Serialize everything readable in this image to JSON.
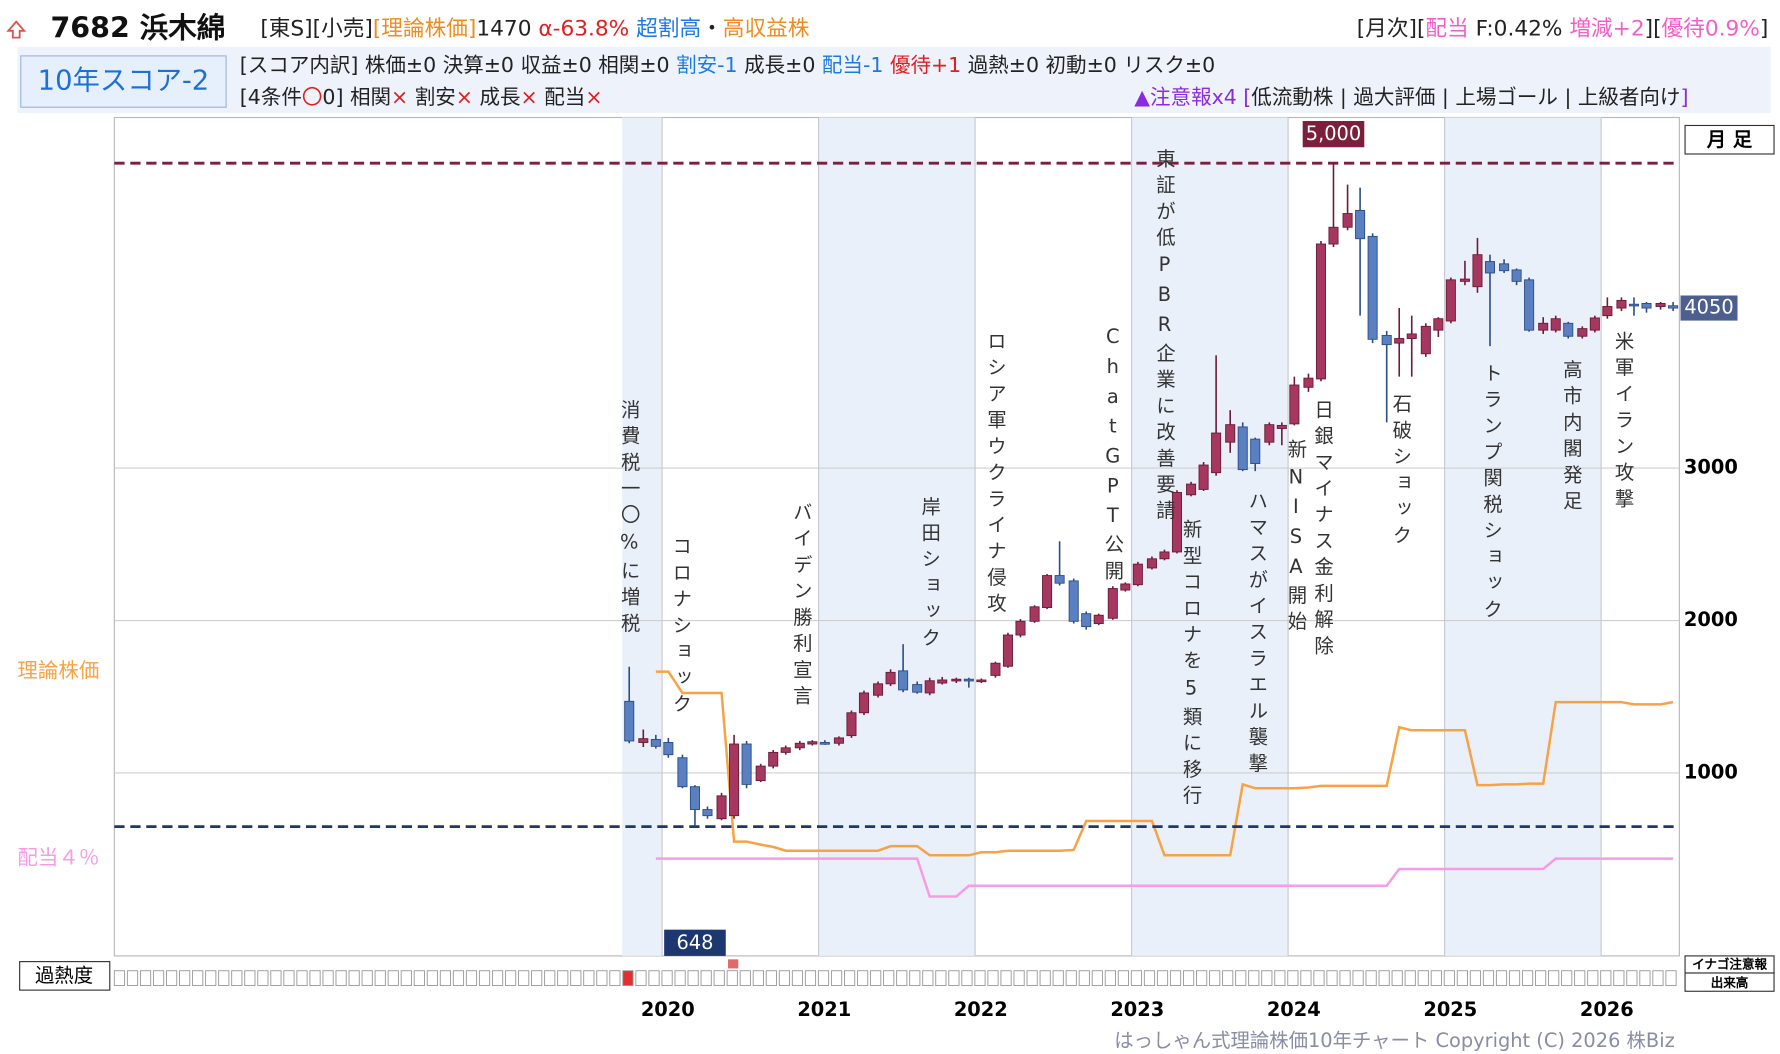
{
  "header": {
    "ticker": "7682 浜木綿",
    "line1_left": [
      {
        "text": "[東S][小売]",
        "color": "#222"
      },
      {
        "text": "[理論株価]",
        "color": "#f08c1e"
      },
      {
        "text": "1470 ",
        "color": "#222"
      },
      {
        "text": "α-63.8%",
        "color": "#e02020"
      },
      {
        "text": " 超割高",
        "color": "#1f7ae0"
      },
      {
        "text": "・",
        "color": "#222"
      },
      {
        "text": "高収益株",
        "color": "#f08c1e"
      }
    ],
    "line1_right": [
      {
        "text": "[月次][",
        "color": "#222"
      },
      {
        "text": "配当",
        "color": "#f060c8"
      },
      {
        "text": " F:0.42% ",
        "color": "#222"
      },
      {
        "text": "増減+2",
        "color": "#f060c8"
      },
      {
        "text": "][",
        "color": "#222"
      },
      {
        "text": "優待0.9%",
        "color": "#f060c8"
      },
      {
        "text": "]",
        "color": "#222"
      }
    ],
    "score": "10年スコア-2",
    "line2": [
      {
        "text": "[スコア内訳] 株価±0 決算±0 収益±0 相関±0 ",
        "color": "#222"
      },
      {
        "text": "割安-1",
        "color": "#1f7ae0"
      },
      {
        "text": " 成長±0 ",
        "color": "#222"
      },
      {
        "text": "配当-1",
        "color": "#1f7ae0"
      },
      {
        "text": " ",
        "color": "#222"
      },
      {
        "text": "優待+1",
        "color": "#e02020"
      },
      {
        "text": " 過熱±0 初動±0 リスク±0",
        "color": "#222"
      }
    ],
    "line3_left": [
      {
        "text": "[4条件",
        "color": "#222"
      },
      {
        "text": "〇",
        "color": "#e02020"
      },
      {
        "text": "0] 相関",
        "color": "#222"
      },
      {
        "text": "×",
        "color": "#e02020"
      },
      {
        "text": " 割安",
        "color": "#222"
      },
      {
        "text": "×",
        "color": "#e02020"
      },
      {
        "text": " 成長",
        "color": "#222"
      },
      {
        "text": "×",
        "color": "#e02020"
      },
      {
        "text": " 配当",
        "color": "#222"
      },
      {
        "text": "×",
        "color": "#e02020"
      }
    ],
    "line3_right": [
      {
        "text": "▲注意報x4 [",
        "color": "#8a2be2"
      },
      {
        "text": "低流動株 | 過大評価 | 上場ゴール | 上級者向け",
        "color": "#222"
      },
      {
        "text": "]",
        "color": "#8a2be2"
      }
    ]
  },
  "panel": {
    "period": "月 足",
    "overheat": "過熱度",
    "inago": "イナゴ注意報",
    "volume": "出来高",
    "copyright": "はっしゃん式理論株価10年チャート Copyright (C) 2026 株Biz"
  },
  "chart_data": {
    "type": "candlestick",
    "up_color": "#a6375f",
    "down_color": "#5b80c2",
    "x": [
      2019.79,
      2019.88,
      2019.96,
      2020.04,
      2020.13,
      2020.21,
      2020.29,
      2020.38,
      2020.46,
      2020.54,
      2020.63,
      2020.71,
      2020.79,
      2020.88,
      2020.96,
      2021.04,
      2021.13,
      2021.21,
      2021.29,
      2021.38,
      2021.46,
      2021.54,
      2021.63,
      2021.71,
      2021.79,
      2021.88,
      2021.96,
      2022.04,
      2022.13,
      2022.21,
      2022.29,
      2022.38,
      2022.46,
      2022.54,
      2022.63,
      2022.71,
      2022.79,
      2022.88,
      2022.96,
      2023.04,
      2023.13,
      2023.21,
      2023.29,
      2023.38,
      2023.46,
      2023.54,
      2023.63,
      2023.71,
      2023.79,
      2023.88,
      2023.96,
      2024.04,
      2024.13,
      2024.21,
      2024.29,
      2024.38,
      2024.46,
      2024.54,
      2024.63,
      2024.71,
      2024.79,
      2024.88,
      2024.96,
      2025.04,
      2025.13,
      2025.21,
      2025.29,
      2025.38,
      2025.46,
      2025.54,
      2025.63,
      2025.71,
      2025.79,
      2025.88,
      2025.96,
      2026.04,
      2026.13,
      2026.21,
      2026.29,
      2026.38,
      2026.46
    ],
    "open": [
      1470,
      1200,
      1220,
      1200,
      1100,
      910,
      760,
      700,
      720,
      1190,
      950,
      1045,
      1135,
      1165,
      1190,
      1200,
      1195,
      1245,
      1395,
      1510,
      1585,
      1670,
      1580,
      1525,
      1590,
      1605,
      1615,
      1605,
      1640,
      1700,
      1905,
      1995,
      2085,
      2295,
      2260,
      2045,
      1980,
      2015,
      2200,
      2235,
      2345,
      2405,
      2450,
      2825,
      2860,
      2970,
      3170,
      3270,
      3190,
      3170,
      3260,
      3290,
      3530,
      3585,
      4470,
      4580,
      4690,
      4520,
      3870,
      3820,
      3850,
      3750,
      3905,
      3965,
      4225,
      4190,
      4355,
      4340,
      4300,
      4235,
      3905,
      3905,
      3950,
      3865,
      3905,
      4000,
      4050,
      4075,
      4080,
      4060,
      4065
    ],
    "high": [
      1697,
      1285,
      1250,
      1230,
      1120,
      920,
      780,
      870,
      1250,
      1210,
      1060,
      1150,
      1180,
      1210,
      1215,
      1215,
      1240,
      1410,
      1540,
      1600,
      1680,
      1845,
      1600,
      1625,
      1630,
      1625,
      1625,
      1620,
      1730,
      1920,
      2010,
      2100,
      2305,
      2520,
      2275,
      2060,
      2045,
      2225,
      2250,
      2385,
      2420,
      2465,
      2855,
      2910,
      3040,
      3740,
      3380,
      3300,
      3200,
      3300,
      3300,
      3600,
      3620,
      4490,
      5000,
      4860,
      4840,
      4540,
      3900,
      4050,
      4000,
      3950,
      3990,
      4250,
      4360,
      4510,
      4400,
      4370,
      4310,
      4250,
      3990,
      4000,
      3960,
      3930,
      4000,
      4120,
      4120,
      4120,
      4090,
      4090,
      4090
    ],
    "low": [
      1195,
      1170,
      1160,
      1100,
      900,
      648,
      700,
      690,
      700,
      900,
      940,
      1030,
      1120,
      1150,
      1180,
      1185,
      1180,
      1230,
      1380,
      1495,
      1570,
      1530,
      1520,
      1510,
      1580,
      1590,
      1560,
      1590,
      1625,
      1690,
      1890,
      1985,
      2075,
      2230,
      1980,
      1940,
      1970,
      2005,
      2190,
      2225,
      2335,
      2395,
      2440,
      2815,
      2850,
      2950,
      3100,
      2980,
      2980,
      3150,
      3150,
      3280,
      3500,
      3570,
      4450,
      4560,
      4000,
      3820,
      3300,
      3600,
      3600,
      3730,
      3860,
      3950,
      4200,
      4150,
      3800,
      4280,
      4200,
      3895,
      3880,
      3890,
      3850,
      3850,
      3890,
      3980,
      4030,
      4000,
      4020,
      4040,
      4030
    ],
    "close": [
      1210,
      1225,
      1175,
      1120,
      910,
      760,
      720,
      850,
      1190,
      925,
      1045,
      1135,
      1165,
      1195,
      1205,
      1195,
      1230,
      1395,
      1525,
      1585,
      1660,
      1545,
      1530,
      1605,
      1610,
      1615,
      1605,
      1610,
      1720,
      1905,
      1995,
      2090,
      2295,
      2245,
      1995,
      1960,
      2035,
      2210,
      2240,
      2370,
      2405,
      2450,
      2840,
      2895,
      3020,
      3230,
      3285,
      2990,
      3030,
      3285,
      3280,
      3545,
      3590,
      4470,
      4580,
      4670,
      4505,
      3845,
      3810,
      3850,
      3880,
      3930,
      3980,
      4235,
      4240,
      4400,
      4280,
      4295,
      4225,
      3905,
      3950,
      3980,
      3865,
      3915,
      3985,
      4060,
      4100,
      4070,
      4050,
      4080,
      4050
    ],
    "series": [
      {
        "name": "理論株価",
        "color": "#f7a345",
        "values": [
          null,
          null,
          1665,
          1665,
          1525,
          1525,
          1525,
          1525,
          550,
          550,
          530,
          515,
          490,
          490,
          490,
          490,
          490,
          490,
          490,
          490,
          520,
          520,
          520,
          460,
          460,
          460,
          460,
          480,
          480,
          490,
          490,
          490,
          490,
          490,
          495,
          685,
          685,
          685,
          685,
          685,
          685,
          460,
          460,
          460,
          460,
          460,
          460,
          925,
          900,
          900,
          900,
          900,
          905,
          915,
          915,
          915,
          915,
          915,
          915,
          1300,
          1280,
          1280,
          1280,
          1280,
          1280,
          920,
          920,
          925,
          925,
          930,
          930,
          1465,
          1465,
          1465,
          1465,
          1465,
          1465,
          1450,
          1450,
          1450,
          1465
        ]
      },
      {
        "name": "配当４％",
        "color": "#f59ce4",
        "values": [
          null,
          null,
          438,
          438,
          438,
          438,
          438,
          438,
          438,
          438,
          438,
          438,
          438,
          438,
          438,
          438,
          438,
          438,
          438,
          438,
          438,
          438,
          438,
          190,
          190,
          190,
          260,
          260,
          260,
          260,
          260,
          260,
          260,
          260,
          260,
          260,
          260,
          260,
          260,
          260,
          260,
          260,
          260,
          260,
          260,
          260,
          260,
          260,
          260,
          260,
          260,
          260,
          260,
          260,
          260,
          260,
          260,
          260,
          260,
          370,
          370,
          370,
          370,
          370,
          370,
          370,
          370,
          370,
          370,
          370,
          370,
          438,
          438,
          438,
          438,
          438,
          438,
          438,
          438,
          438,
          438
        ]
      }
    ],
    "reference_lines": [
      {
        "value": 5000,
        "label": "5,000",
        "color": "#7b1f3c"
      },
      {
        "value": 648,
        "label": "648",
        "color": "#1d3770"
      }
    ],
    "annotations": [
      {
        "text": "消費税一〇%に増税",
        "x": 2019.79
      },
      {
        "text": "コロナショック",
        "x": 2020.12
      },
      {
        "text": "バイデン勝利宣言",
        "x": 2020.89
      },
      {
        "text": "岸田ショック",
        "x": 2021.71
      },
      {
        "text": "ロシア軍ウクライナ侵攻",
        "x": 2022.13
      },
      {
        "text": "ChatGPT公開",
        "x": 2022.88
      },
      {
        "text": "東証が低PBR企業に改善要請",
        "x": 2023.21
      },
      {
        "text": "新型コロナを5類に移行",
        "x": 2023.38
      },
      {
        "text": "ハマスがイスラエル襲撃",
        "x": 2023.8
      },
      {
        "text": "新NISA開始",
        "x": 2024.05
      },
      {
        "text": "日銀マイナス金利解除",
        "x": 2024.22
      },
      {
        "text": "石破ショック",
        "x": 2024.72
      },
      {
        "text": "トランプ関税ショック",
        "x": 2025.3
      },
      {
        "text": "高市内閣発足",
        "x": 2025.81
      },
      {
        "text": "米軍イラン攻撃",
        "x": 2026.14
      }
    ],
    "xlim": [
      2016.5,
      2026.5
    ],
    "xticks": [
      2020,
      2021,
      2022,
      2023,
      2024,
      2025,
      2026
    ],
    "ylim": [
      -200,
      5300
    ],
    "yticks": [
      1000,
      2000,
      3000
    ],
    "grid": true
  }
}
